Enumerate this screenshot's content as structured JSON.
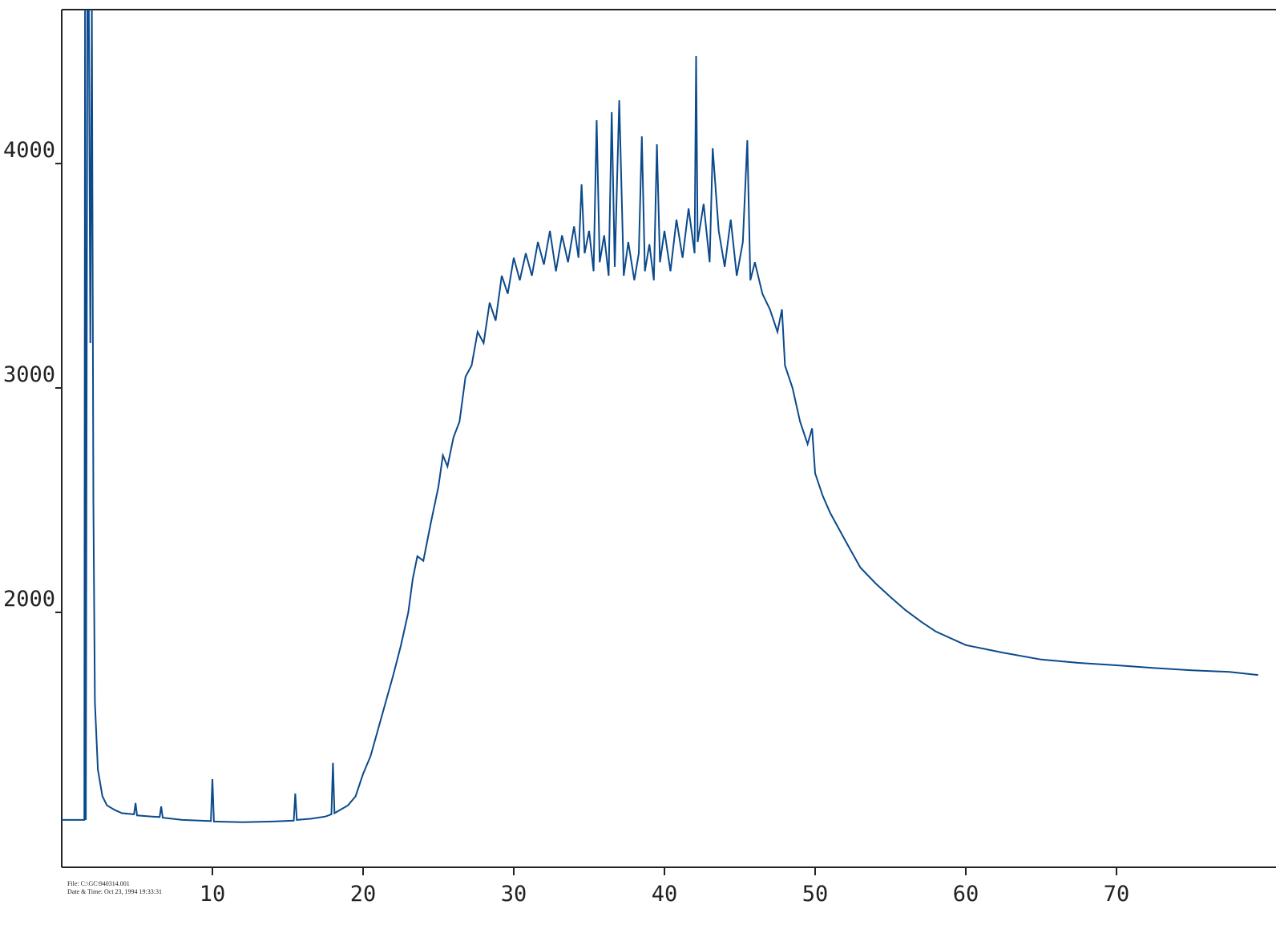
{
  "chart_data": {
    "type": "line",
    "annotations": [
      "File: C:\\GC\\940314.001",
      "Date & Time: Oct 23, 1994 19:33:31"
    ],
    "xlim": [
      0,
      80
    ],
    "xticks": [
      10,
      20,
      30,
      40,
      50,
      60,
      70
    ],
    "ylim": [
      864,
      4686
    ],
    "yticks": [
      2000,
      3000,
      4000
    ],
    "series": [
      {
        "color": "#0b4a8b",
        "x": [
          0,
          1.5,
          1.55,
          1.6,
          1.7,
          1.8,
          1.9,
          2.0,
          2.1,
          2.2,
          2.4,
          2.7,
          3.0,
          3.5,
          4.0,
          4.8,
          4.9,
          5.0,
          6.0,
          6.5,
          6.6,
          6.7,
          8.0,
          9.9,
          10.0,
          10.1,
          12.0,
          14.0,
          15.4,
          15.5,
          15.6,
          16.5,
          17.5,
          17.9,
          18.0,
          18.1,
          19.0,
          19.5,
          20.0,
          20.5,
          21.0,
          21.5,
          22.0,
          22.5,
          23.0,
          23.3,
          23.6,
          24.0,
          24.5,
          25.0,
          25.3,
          25.6,
          26.0,
          26.4,
          26.8,
          27.2,
          27.6,
          28.0,
          28.4,
          28.8,
          29.2,
          29.6,
          30.0,
          30.4,
          30.8,
          31.2,
          31.6,
          32.0,
          32.4,
          32.8,
          33.2,
          33.6,
          34.0,
          34.3,
          34.5,
          34.7,
          35.0,
          35.3,
          35.5,
          35.7,
          36.0,
          36.3,
          36.5,
          36.7,
          37.0,
          37.3,
          37.6,
          38.0,
          38.3,
          38.5,
          38.7,
          39.0,
          39.3,
          39.5,
          39.7,
          40.0,
          40.4,
          40.8,
          41.2,
          41.6,
          42.0,
          42.1,
          42.2,
          42.6,
          43.0,
          43.2,
          43.6,
          44.0,
          44.4,
          44.8,
          45.2,
          45.5,
          45.7,
          46.0,
          46.5,
          47.0,
          47.5,
          47.8,
          48.0,
          48.5,
          49.0,
          49.5,
          49.8,
          50.0,
          50.5,
          51.0,
          52.0,
          53.0,
          54.0,
          55.0,
          56.0,
          57.0,
          58.0,
          60.0,
          62.5,
          65.0,
          67.5,
          70.0,
          72.5,
          75.0,
          77.5,
          79.4
        ],
        "values": [
          1075,
          1075,
          4700,
          1075,
          4700,
          4700,
          3200,
          4700,
          2500,
          1600,
          1300,
          1180,
          1140,
          1120,
          1105,
          1100,
          1150,
          1095,
          1090,
          1088,
          1135,
          1085,
          1075,
          1070,
          1257,
          1068,
          1065,
          1068,
          1072,
          1193,
          1075,
          1080,
          1090,
          1100,
          1329,
          1105,
          1140,
          1180,
          1280,
          1360,
          1480,
          1600,
          1720,
          1850,
          2000,
          2150,
          2250,
          2230,
          2400,
          2560,
          2700,
          2650,
          2780,
          2850,
          3050,
          3100,
          3250,
          3200,
          3380,
          3300,
          3500,
          3420,
          3580,
          3480,
          3600,
          3500,
          3650,
          3550,
          3700,
          3520,
          3680,
          3560,
          3720,
          3580,
          3907,
          3600,
          3700,
          3520,
          4193,
          3560,
          3680,
          3500,
          4229,
          3540,
          4282,
          3500,
          3650,
          3480,
          3600,
          4121,
          3520,
          3640,
          3480,
          4086,
          3560,
          3700,
          3520,
          3750,
          3580,
          3800,
          3600,
          4479,
          3650,
          3820,
          3560,
          4068,
          3700,
          3540,
          3750,
          3500,
          3650,
          4104,
          3480,
          3560,
          3420,
          3350,
          3250,
          3350,
          3100,
          3000,
          2850,
          2750,
          2820,
          2620,
          2520,
          2443,
          2320,
          2200,
          2130,
          2068,
          2010,
          1960,
          1915,
          1854,
          1820,
          1790,
          1775,
          1764,
          1752,
          1742,
          1735,
          1721
        ]
      }
    ]
  }
}
